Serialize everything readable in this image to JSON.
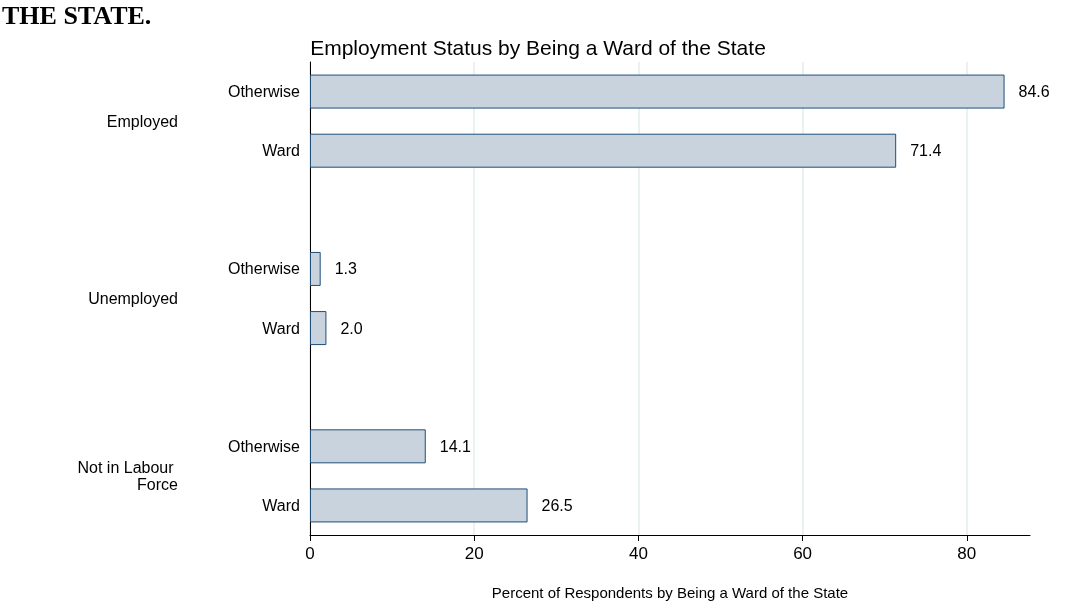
{
  "chart_data": {
    "type": "bar",
    "orientation": "horizontal",
    "title": "Employment Status by Being a Ward of the State",
    "xlabel": "Percent of Respondents by Being a Ward of the State",
    "categories": [
      "Otherwise",
      "Ward",
      null,
      "Otherwise",
      "Ward",
      null,
      "Otherwise",
      "Ward"
    ],
    "values": [
      84.6,
      71.4,
      null,
      1.3,
      2.0,
      null,
      14.1,
      26.5
    ],
    "value_labels": [
      "84.6",
      "71.4",
      null,
      "1.3",
      "2.0",
      null,
      "14.1",
      "26.5"
    ],
    "color": "#c9d3de",
    "xlim": [
      0,
      87.7
    ],
    "xticks": [
      0,
      20,
      40,
      60,
      80
    ],
    "grid": "x",
    "annotations": [
      "THE STATE.",
      "Employed",
      "Unemployed",
      "Not in Labour Force"
    ]
  }
}
